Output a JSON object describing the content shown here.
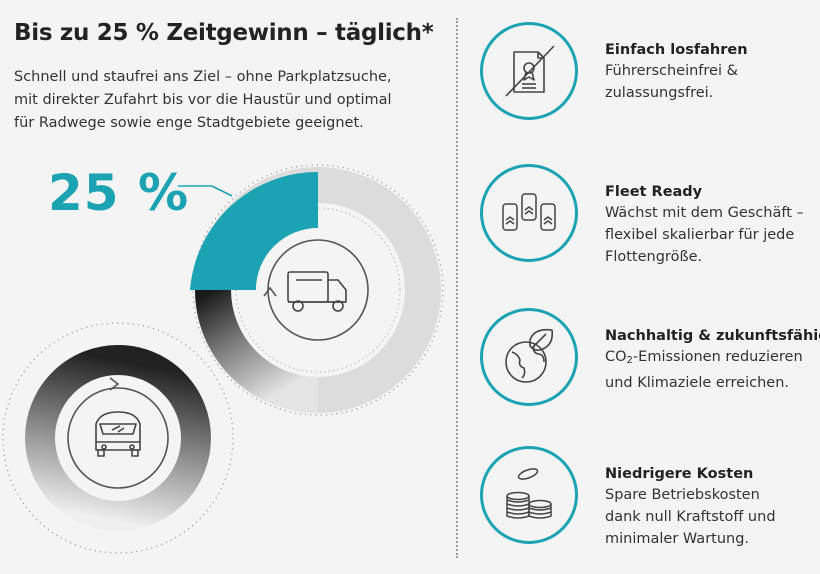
{
  "title": "Bis zu 25 % Zeitgewinn – täglich*",
  "intro_lines": [
    "Schnell und staufrei ans Ziel – ohne Parkplatzsuche,",
    "mit direkter Zufahrt bis vor die Haustür und optimal",
    "für Radwege sowie enge Stadtgebiete geeignet."
  ],
  "highlight": {
    "percent_label": "25 %",
    "value_percent": 25,
    "accent_color": "#1ba3b4"
  },
  "features": [
    {
      "icon": "certificate-crossed-icon",
      "title": "Einfach losfahren",
      "lines": [
        "Führerscheinfrei &",
        "zulassungsfrei."
      ]
    },
    {
      "icon": "fleet-vehicles-icon",
      "title": "Fleet Ready",
      "lines": [
        "Wächst mit dem Geschäft –",
        "flexibel skalierbar für jede",
        "Flottengröße."
      ]
    },
    {
      "icon": "globe-leaf-icon",
      "title": "Nachhaltig & zukunftsfähig",
      "lines_pre": "CO",
      "lines_sub": "2",
      "lines_post": "-Emissionen reduzieren",
      "lines": [
        "und Klimaziele erreichen."
      ]
    },
    {
      "icon": "coin-stack-icon",
      "title": "Niedrigere Kosten",
      "lines": [
        "Spare Betriebskosten",
        "dank null Kraftstoff und",
        "minimaler Wartung."
      ]
    }
  ]
}
